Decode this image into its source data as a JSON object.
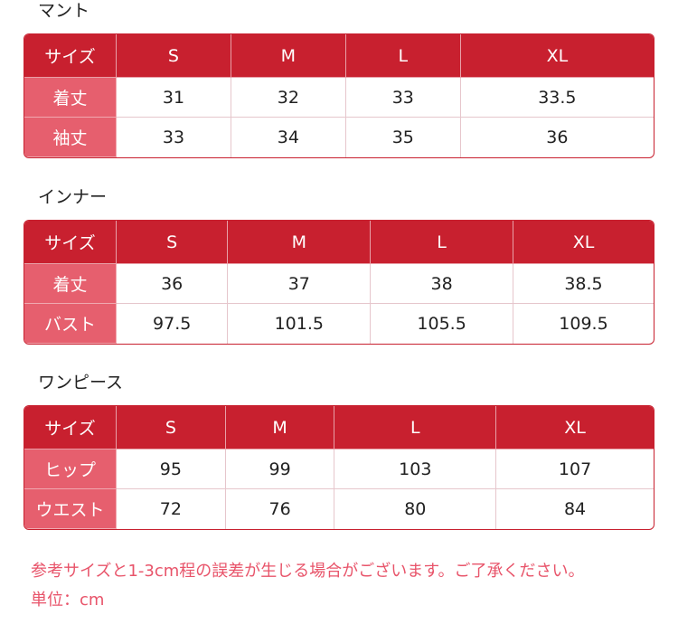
{
  "tables": [
    {
      "title": "マント",
      "header": [
        "サイズ",
        "S",
        "M",
        "L",
        "XL"
      ],
      "rows": [
        [
          "着丈",
          "31",
          "32",
          "33",
          "33.5"
        ],
        [
          "袖丈",
          "33",
          "34",
          "35",
          "36"
        ]
      ]
    },
    {
      "title": "インナー",
      "header": [
        "サイズ",
        "S",
        "M",
        "L",
        "XL"
      ],
      "rows": [
        [
          "着丈",
          "36",
          "37",
          "38",
          "38.5"
        ],
        [
          "バスト",
          "97.5",
          "101.5",
          "105.5",
          "109.5"
        ]
      ]
    },
    {
      "title": "ワンピース",
      "header": [
        "サイズ",
        "S",
        "M",
        "L",
        "XL"
      ],
      "rows": [
        [
          "ヒップ",
          "95",
          "99",
          "103",
          "107"
        ],
        [
          "ウエスト",
          "72",
          "76",
          "80",
          "84"
        ]
      ]
    }
  ],
  "notes": [
    "参考サイズと1-3cm程の誤差が生じる場合がございます。ご了承ください。",
    "単位：cm"
  ],
  "colors": {
    "header": "#c8202f",
    "row_label": "#e65f6e",
    "note": "#e8546a"
  }
}
